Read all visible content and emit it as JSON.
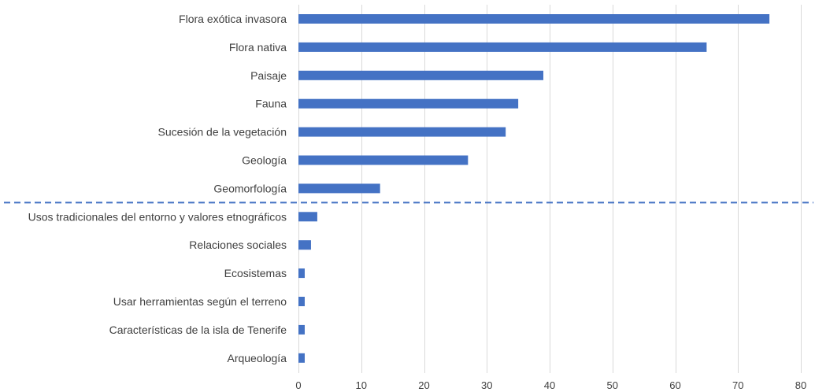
{
  "chart_data": {
    "type": "bar",
    "orientation": "horizontal",
    "categories": [
      "Flora exótica invasora",
      "Flora nativa",
      "Paisaje",
      "Fauna",
      "Sucesión de la vegetación",
      "Geología",
      "Geomorfología",
      "Usos tradicionales del entorno y valores etnográficos",
      "Relaciones sociales",
      "Ecosistemas",
      "Usar herramientas según el terreno",
      "Características de la isla de Tenerife",
      "Arqueología"
    ],
    "values": [
      75,
      65,
      39,
      35,
      33,
      27,
      13,
      3,
      2,
      1,
      1,
      1,
      1
    ],
    "xlim": [
      0,
      80
    ],
    "x_ticks": [
      0,
      10,
      20,
      30,
      40,
      50,
      60,
      70,
      80
    ],
    "x_tick_labels": [
      "0",
      "10",
      "20",
      "30",
      "40",
      "50",
      "60",
      "70",
      "80"
    ],
    "grid": "vertical",
    "bar_color": "#4472c4",
    "divider": {
      "style": "dashed",
      "color": "#4472c4",
      "after_category_index": 6
    },
    "title": "",
    "xlabel": "",
    "ylabel": ""
  }
}
